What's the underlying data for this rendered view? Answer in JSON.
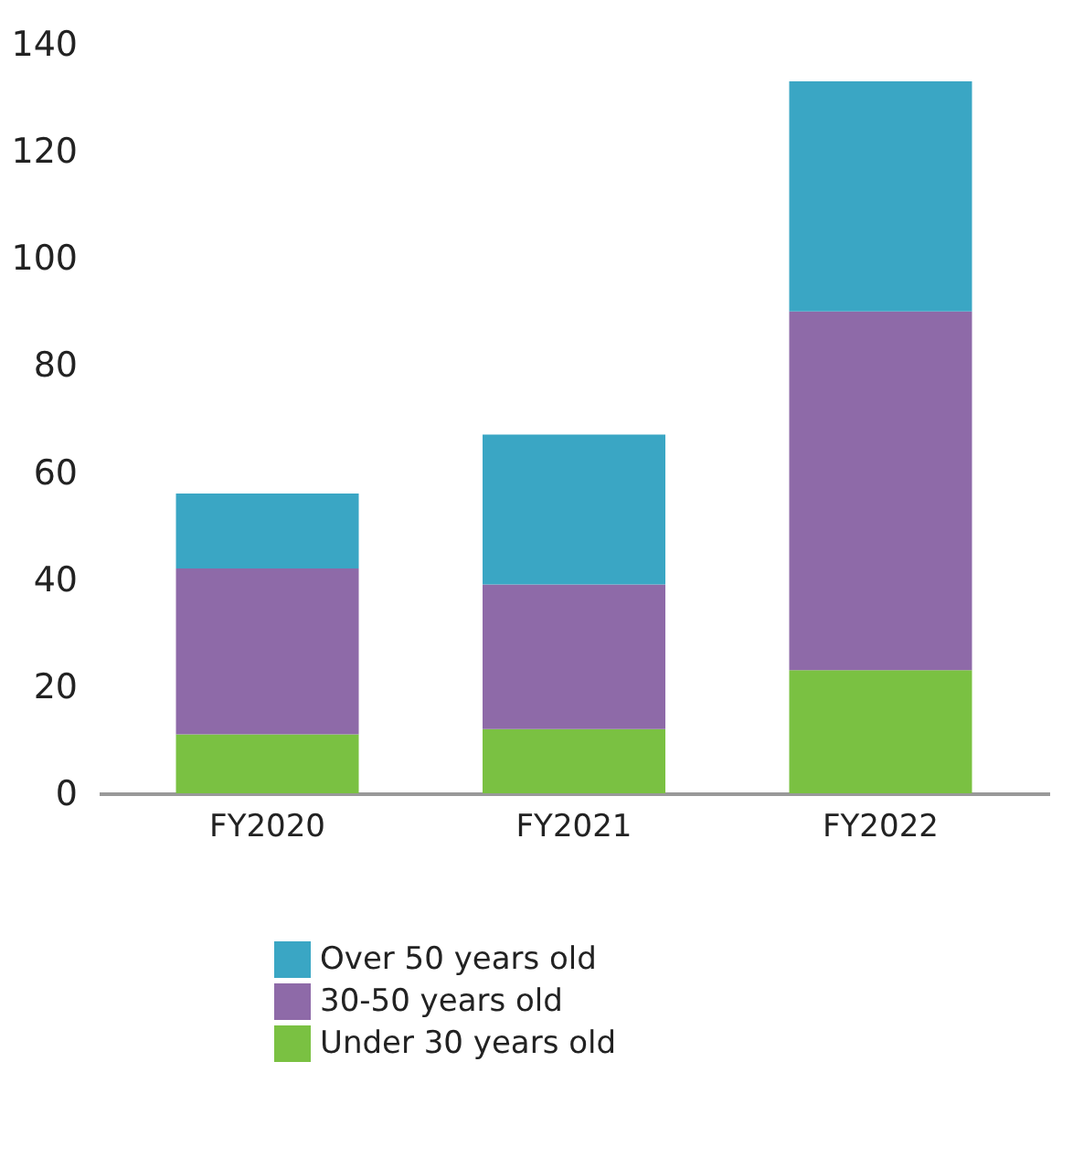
{
  "chart_data": {
    "type": "bar",
    "stacked": true,
    "categories": [
      "FY2020",
      "FY2021",
      "FY2022"
    ],
    "series": [
      {
        "name": "Under 30 years old",
        "color": "#7ac142",
        "values": [
          11,
          12,
          23
        ]
      },
      {
        "name": "30-50 years old",
        "color": "#8e6aa8",
        "values": [
          31,
          27,
          67
        ]
      },
      {
        "name": "Over 50 years old",
        "color": "#3aa6c4",
        "values": [
          14,
          28,
          43
        ]
      }
    ],
    "ylim": [
      0,
      140
    ],
    "yticks": [
      0,
      20,
      40,
      60,
      80,
      100,
      120,
      140
    ],
    "grid": false,
    "legend": "bottom left"
  }
}
